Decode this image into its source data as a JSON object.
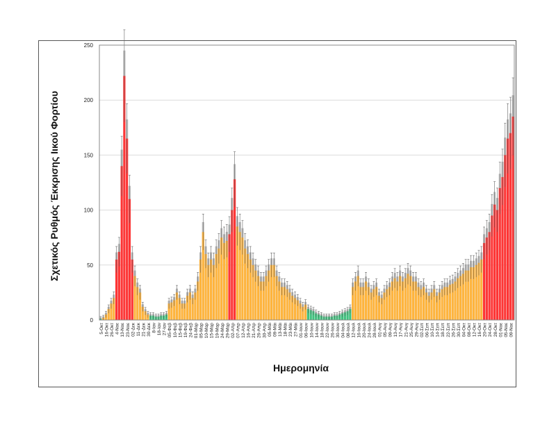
{
  "chart_data": {
    "type": "bar",
    "title": "",
    "xlabel": "Ημερομηνία",
    "ylabel": "Σχετικός Ρυθμός Έκκρισης Ιικού Φορτίου",
    "ylim": [
      0,
      250
    ],
    "yticks": [
      0,
      50,
      100,
      150,
      200,
      250
    ],
    "grid": true,
    "legend": "none",
    "colors": {
      "r": "#ff3535",
      "o": "#ffb43c",
      "g": "#3fc27e",
      "gray": "#b4b4b4",
      "error": "#666666"
    },
    "error_bar_relative": 0.18,
    "categories": [
      "5-Οκτ",
      "16-Οκτ",
      "26-Οκτ",
      "4-Νοε",
      "13-Νοε",
      "23-Νοε",
      "02-Δεκ",
      "11-Δεκ",
      "21-Δεκ",
      "30-Δεκ",
      "8-Ιαν",
      "18-Ιαν",
      "27-Ιαν",
      "05-Φεβ",
      "10-Φεβ",
      "15-Φεβ",
      "19-Φεβ",
      "24-Φεβ",
      "01-Μαρ",
      "05-Μαρ",
      "10-Μαρ",
      "15-Μαρ",
      "19-Μαρ",
      "24-Μαρ",
      "29-Μαρ",
      "02-Απρ",
      "07-Απρ",
      "12-Απρ",
      "16-Απρ",
      "21-Απρ",
      "26-Απρ",
      "30-Απρ",
      "05-Μάι",
      "09-Μάι",
      "13-Μάι",
      "18-Μάι",
      "23-Μάι",
      "27-Μάι",
      "01-Ιουν",
      "06-Ιουν",
      "10-Ιουν",
      "14-Ιουν",
      "18-Ιουν",
      "22-Ιουν",
      "26-Ιουν",
      "30-Ιουν",
      "04-Ιουλ",
      "08-Ιουλ",
      "12-Ιουλ",
      "16-Ιουλ",
      "20-Ιουλ",
      "24-Ιουλ",
      "28-Ιουλ",
      "01-Αυγ",
      "05-Αυγ",
      "09-Αυγ",
      "13-Αυγ",
      "17-Αυγ",
      "21-Αυγ",
      "25-Αυγ",
      "29-Αυγ",
      "02-Σεπ",
      "06-Σεπ",
      "10-Σεπ",
      "14-Σεπ",
      "18-Σεπ",
      "22-Σεπ",
      "26-Σεπ",
      "30-Σεπ",
      "04-Οκτ",
      "08-Οκτ",
      "12-Οκτ",
      "16-Οκτ",
      "20-Οκτ",
      "24-Οκτ",
      "28-Οκτ",
      "01-Νοε",
      "05-Νοε",
      "09-Νοε"
    ],
    "values": [
      [
        1,
        2
      ],
      [
        5,
        10
      ],
      [
        15,
        20
      ],
      [
        55,
        62
      ],
      [
        140,
        222
      ],
      [
        165,
        110
      ],
      [
        55,
        40
      ],
      [
        30,
        25
      ],
      [
        12,
        8
      ],
      [
        5,
        4
      ],
      [
        4,
        3
      ],
      [
        3,
        4
      ],
      [
        4,
        5
      ],
      [
        15,
        16
      ],
      [
        18,
        25
      ],
      [
        20,
        15
      ],
      [
        15,
        22
      ],
      [
        25,
        20
      ],
      [
        25,
        35
      ],
      [
        55,
        80
      ],
      [
        60,
        50
      ],
      [
        55,
        50
      ],
      [
        60,
        65
      ],
      [
        75,
        70
      ],
      [
        72,
        78
      ],
      [
        100,
        128
      ],
      [
        85,
        80
      ],
      [
        75,
        65
      ],
      [
        60,
        55
      ],
      [
        50,
        45
      ],
      [
        40,
        35
      ],
      [
        35,
        40
      ],
      [
        45,
        50
      ],
      [
        50,
        40
      ],
      [
        35,
        30
      ],
      [
        30,
        28
      ],
      [
        25,
        22
      ],
      [
        20,
        18
      ],
      [
        15,
        12
      ],
      [
        14,
        10
      ],
      [
        9,
        8
      ],
      [
        6,
        5
      ],
      [
        4,
        3
      ],
      [
        3,
        3
      ],
      [
        3,
        4
      ],
      [
        4,
        5
      ],
      [
        6,
        7
      ],
      [
        8,
        10
      ],
      [
        30,
        35
      ],
      [
        40,
        30
      ],
      [
        30,
        35
      ],
      [
        30,
        25
      ],
      [
        28,
        30
      ],
      [
        22,
        20
      ],
      [
        25,
        28
      ],
      [
        30,
        35
      ],
      [
        38,
        35
      ],
      [
        40,
        35
      ],
      [
        38,
        42
      ],
      [
        40,
        35
      ],
      [
        35,
        30
      ],
      [
        28,
        30
      ],
      [
        25,
        22
      ],
      [
        25,
        28
      ],
      [
        22,
        25
      ],
      [
        28,
        30
      ],
      [
        30,
        32
      ],
      [
        33,
        35
      ],
      [
        38,
        40
      ],
      [
        42,
        45
      ],
      [
        45,
        48
      ],
      [
        48,
        50
      ],
      [
        52,
        55
      ],
      [
        70,
        75
      ],
      [
        80,
        95
      ],
      [
        105,
        100
      ],
      [
        120,
        130
      ],
      [
        150,
        165
      ],
      [
        170,
        185
      ]
    ],
    "bar_colors": [
      "go",
      "oo",
      "oo",
      "rr",
      "rr",
      "rr",
      "ro",
      "oo",
      "oo",
      "og",
      "gg",
      "gg",
      "gg",
      "oo",
      "oo",
      "oo",
      "oo",
      "oo",
      "oo",
      "oo",
      "oo",
      "oo",
      "oo",
      "oo",
      "or",
      "rr",
      "oo",
      "oo",
      "oo",
      "oo",
      "oo",
      "oo",
      "oo",
      "oo",
      "oo",
      "oo",
      "oo",
      "oo",
      "oo",
      "og",
      "gg",
      "gg",
      "gg",
      "gg",
      "gg",
      "gg",
      "gg",
      "gg",
      "oo",
      "oo",
      "oo",
      "oo",
      "oo",
      "oo",
      "oo",
      "oo",
      "oo",
      "oo",
      "oo",
      "oo",
      "oo",
      "oo",
      "oo",
      "oo",
      "oo",
      "oo",
      "oo",
      "oo",
      "oo",
      "oo",
      "oo",
      "oo",
      "oo",
      "rr",
      "rr",
      "rr",
      "rr",
      "rr",
      "rr"
    ]
  }
}
